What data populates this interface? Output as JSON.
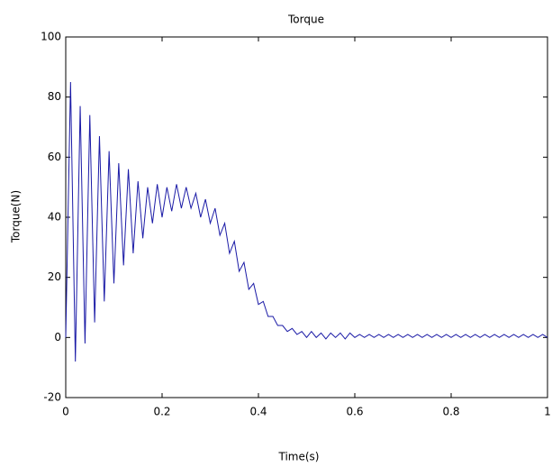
{
  "chart_data": {
    "type": "line",
    "title": "Torque",
    "x_label": "Time(s)",
    "y_label": "Torque(N)",
    "x": [
      0,
      0.01,
      0.02,
      0.03,
      0.04,
      0.05,
      0.06,
      0.07,
      0.08,
      0.09,
      0.1,
      0.11,
      0.12,
      0.13,
      0.14,
      0.15,
      0.16,
      0.17,
      0.18,
      0.19,
      0.2,
      0.21,
      0.22,
      0.23,
      0.24,
      0.25,
      0.26,
      0.27,
      0.28,
      0.29,
      0.3,
      0.31,
      0.32,
      0.33,
      0.34,
      0.35,
      0.36,
      0.37,
      0.38,
      0.39,
      0.4,
      0.41,
      0.42,
      0.43,
      0.44,
      0.45,
      0.46,
      0.47,
      0.48,
      0.49,
      0.5,
      0.51,
      0.52,
      0.53,
      0.54,
      0.55,
      0.56,
      0.57,
      0.58,
      0.59,
      0.6,
      0.61,
      0.62,
      0.63,
      0.64,
      0.65,
      0.66,
      0.67,
      0.68,
      0.69,
      0.7,
      0.71,
      0.72,
      0.73,
      0.74,
      0.75,
      0.76,
      0.77,
      0.78,
      0.79,
      0.8,
      0.81,
      0.82,
      0.83,
      0.84,
      0.85,
      0.86,
      0.87,
      0.88,
      0.89,
      0.9,
      0.91,
      0.92,
      0.93,
      0.94,
      0.95,
      0.96,
      0.97,
      0.98,
      0.99,
      1
    ],
    "series": [
      {
        "color": "#1a1aa6",
        "values": [
          0,
          85,
          -8,
          77,
          -2,
          74,
          5,
          67,
          12,
          62,
          18,
          58,
          24,
          56,
          28,
          52,
          33,
          50,
          38,
          51,
          40,
          50,
          42,
          51,
          43,
          50,
          43,
          48,
          40,
          46,
          38,
          43,
          34,
          38,
          28,
          32,
          22,
          25,
          16,
          18,
          11,
          12,
          7,
          7,
          4,
          4,
          2,
          3,
          1,
          2,
          0,
          2,
          0,
          1.5,
          -0.5,
          1.5,
          0,
          1.5,
          -0.5,
          1.5,
          0,
          1,
          0,
          1,
          0,
          1,
          0,
          1,
          0,
          1,
          0,
          1,
          0,
          1,
          0,
          1,
          0,
          1,
          0,
          1,
          0,
          1,
          0,
          1,
          0,
          1,
          0,
          1,
          0,
          1,
          0,
          1,
          0,
          1,
          0,
          1,
          0,
          1,
          0,
          1,
          0
        ]
      }
    ],
    "xlim": [
      0,
      1
    ],
    "xticks": [
      0,
      0.2,
      0.4,
      0.6,
      0.8,
      1
    ],
    "ylim": [
      -20,
      100
    ],
    "yticks": [
      -20,
      0,
      20,
      40,
      60,
      80,
      100
    ]
  }
}
